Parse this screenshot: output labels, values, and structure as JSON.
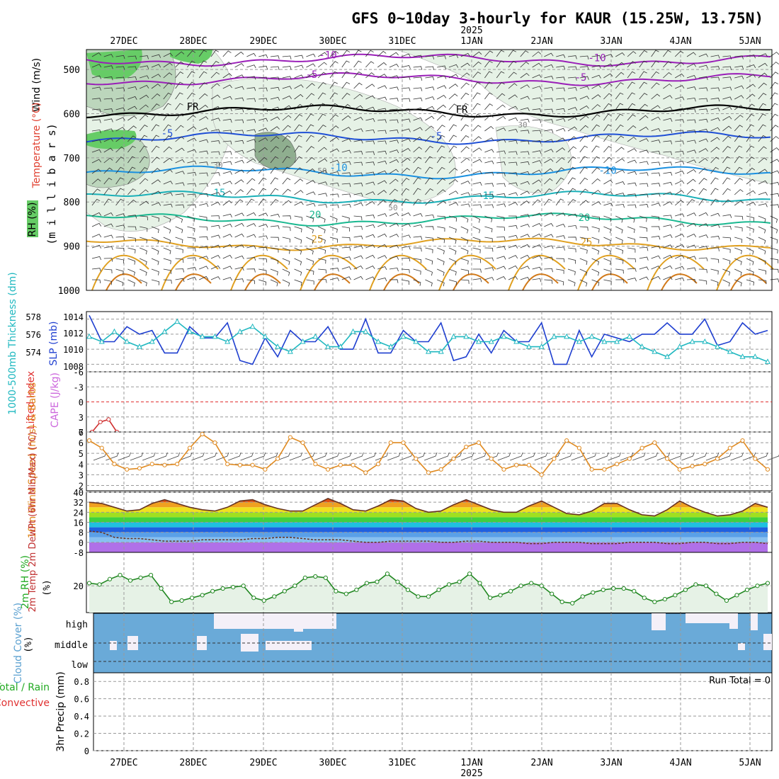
{
  "title": "GFS 0~10day 3-hourly for KAUR (15.25W, 13.75N)",
  "year_label": "2025",
  "date_labels": [
    "27DEC",
    "28DEC",
    "29DEC",
    "30DEC",
    "31DEC",
    "1JAN",
    "2JAN",
    "3JAN",
    "4JAN",
    "5JAN"
  ],
  "run_total": "Run Total = 0",
  "colors": {
    "purple": "#9a1fb8",
    "blue": "#1f4fd6",
    "lightblue": "#1a90e0",
    "teal": "#1ab0b8",
    "green": "#1ab890",
    "orange": "#e0a020",
    "darkorange": "#d27a1a",
    "black": "#000000",
    "rh_light": "#e6f2e6",
    "rh_mid": "#bcd6bc",
    "rh_dark": "#8fae8f",
    "rh_green": "#66cc66",
    "slp": "#1f3fd0",
    "thick": "#20b8c0",
    "wind10": "#e08a20",
    "cloud": "#6aaad8",
    "cloud_clear": "#f4f0f8"
  },
  "chart_data": [
    {
      "type": "line",
      "id": "upper",
      "title": "Wind (m/s) / Temperature (°C) / RH (%)",
      "ylabel": "(m i l l i b a r s)",
      "y_ticks": [
        500,
        600,
        700,
        800,
        900,
        1000
      ],
      "ylim": [
        455,
        1000
      ],
      "label_wind": "Wind (m/s)",
      "label_temp": "Temperature (°C)",
      "label_rh": "RH (%)",
      "isotherms": [
        {
          "label": "-10",
          "level": 478
        },
        {
          "label": "-5",
          "level": 522
        },
        {
          "label": "FR",
          "level": 595
        },
        {
          "label": "-5",
          "level": 655
        },
        {
          "label": "-10",
          "level": 733
        },
        {
          "label": "15",
          "level": 790
        },
        {
          "label": "20",
          "level": 840
        },
        {
          "label": "25",
          "level": 895
        }
      ],
      "rh_contours": [
        "30",
        "30",
        "50",
        "50"
      ]
    },
    {
      "type": "line",
      "id": "slp",
      "ylabel_left": "1000-500mb Thickness (dm)",
      "ylabel_right": "SLP (mb)",
      "left_ticks": [
        "578",
        "576",
        "574"
      ],
      "right_ticks": [
        "1014",
        "1012",
        "1010",
        "1008"
      ],
      "ylim": [
        1007,
        1015
      ],
      "series": [
        {
          "name": "SLP (mb)",
          "values": [
            1014.5,
            1011,
            1011,
            1013,
            1012,
            1012.5,
            1009.5,
            1009.5,
            1013,
            1011.5,
            1011.5,
            1013.5,
            1008.5,
            1008,
            1011.5,
            1009,
            1012.5,
            1011,
            1011,
            1013,
            1010,
            1010,
            1014,
            1009.5,
            1009.5,
            1012.5,
            1011,
            1011,
            1013.5,
            1008.5,
            1009,
            1012,
            1009.5,
            1012.5,
            1011,
            1011,
            1013.5,
            1008,
            1008,
            1012.5,
            1009,
            1012,
            1011.5,
            1011,
            1012,
            1012,
            1013.5,
            1012,
            1012,
            1014,
            1010.5,
            1011,
            1013.5,
            1012,
            1012.5
          ]
        },
        {
          "name": "Thickness (dm)",
          "values": [
            576,
            575.5,
            576.5,
            575.5,
            575,
            575.5,
            576.5,
            577.5,
            576.5,
            576,
            576,
            575.5,
            576.5,
            577,
            576,
            575,
            574.5,
            575.5,
            576,
            575,
            575,
            576.5,
            576.5,
            575.5,
            575,
            576,
            575.5,
            574.5,
            574.5,
            576,
            576,
            575.5,
            575.5,
            576,
            575.5,
            575,
            575,
            576,
            576,
            575.5,
            576,
            575.5,
            575.5,
            576,
            575,
            574.5,
            574,
            575,
            575.5,
            575.5,
            575,
            574.5,
            574,
            574,
            573.5
          ]
        }
      ]
    },
    {
      "type": "line",
      "id": "cape",
      "ylabel_left": "Lifted Index",
      "ylabel_right": "CAPE (J/kg)",
      "y_ticks": [
        "-6",
        "-3",
        "0",
        "3",
        "6"
      ],
      "ylim": [
        -6,
        6
      ],
      "series": [
        {
          "name": "Lifted Index",
          "values": [
            6,
            4,
            3.5,
            6
          ]
        }
      ]
    },
    {
      "type": "line",
      "id": "wind10",
      "ylabel": "10m Wind Speed (m/s) & Barbs",
      "y_ticks": [
        "7",
        "6",
        "5",
        "4",
        "3",
        "2"
      ],
      "ylim": [
        1.5,
        7
      ],
      "series": [
        {
          "name": "10m Wind Speed (m/s)",
          "values": [
            6.2,
            5.5,
            4,
            3.5,
            3.6,
            4,
            3.9,
            4,
            5.5,
            6.8,
            6,
            4,
            3.9,
            3.9,
            3.5,
            4.5,
            6.5,
            6,
            4,
            3.5,
            3.9,
            3.9,
            3.2,
            4,
            6,
            6,
            4.5,
            3.2,
            3.5,
            4.5,
            5.6,
            6,
            4.5,
            3.5,
            3.9,
            3.9,
            3,
            4.5,
            6.2,
            5.5,
            3.5,
            3.5,
            4,
            4.5,
            5.5,
            6,
            4.5,
            3.5,
            3.8,
            4,
            4.5,
            5.5,
            6.2,
            4.5,
            3.5
          ]
        }
      ]
    },
    {
      "type": "area",
      "id": "temp2m",
      "ylabel": "2m Temp 2m DewPt (6hr Min/Max) (°C)",
      "y_ticks": [
        "40",
        "32",
        "24",
        "16",
        "8",
        "0",
        "-8"
      ],
      "ylim": [
        -8,
        40
      ],
      "series": [
        {
          "name": "2m Temp (°C)",
          "values": [
            32,
            31,
            28,
            25,
            26,
            31,
            34,
            31,
            28,
            26,
            25,
            28,
            33,
            34,
            30,
            27,
            25,
            25,
            30,
            35,
            31,
            26,
            25,
            29,
            34,
            33,
            27,
            24,
            25,
            30,
            34,
            30,
            26,
            24,
            24,
            29,
            33,
            28,
            23,
            22,
            25,
            31,
            31,
            26,
            22,
            21,
            26,
            33,
            28,
            24,
            21,
            22,
            25,
            31,
            28
          ]
        },
        {
          "name": "2m DewPt (°C)",
          "values": [
            9,
            8,
            4,
            3,
            3,
            2,
            1,
            1,
            1,
            2,
            2,
            2,
            2,
            3,
            3,
            4,
            4,
            3,
            2,
            2,
            2,
            1,
            0,
            0,
            1,
            1,
            1,
            1,
            0,
            0,
            1,
            1,
            0,
            0,
            0,
            -1,
            -1,
            0,
            0,
            0,
            -1,
            -1,
            -1,
            0,
            0,
            0,
            -1,
            -1,
            0,
            0,
            -1,
            -1,
            0,
            0,
            -1
          ]
        }
      ]
    },
    {
      "type": "area",
      "id": "rh2m",
      "ylabel": "2m RH (%)",
      "y_ticks": [
        "20"
      ],
      "ylim": [
        0,
        45
      ],
      "series": [
        {
          "name": "2m RH",
          "values": [
            22,
            21,
            25,
            28,
            24,
            26,
            28,
            18,
            8,
            9,
            11,
            13,
            16,
            18,
            19,
            20,
            11,
            9,
            12,
            16,
            20,
            26,
            27,
            26,
            16,
            14,
            17,
            22,
            23,
            29,
            23,
            17,
            12,
            12,
            17,
            21,
            23,
            29,
            22,
            11,
            13,
            16,
            20,
            22,
            20,
            14,
            8,
            7,
            12,
            15,
            17,
            18,
            18,
            16,
            11,
            8,
            10,
            13,
            17,
            21,
            20,
            14,
            9,
            13,
            17,
            20,
            22
          ]
        }
      ]
    },
    {
      "type": "bar",
      "id": "cloud",
      "ylabel": "Cloud Cover (%)",
      "levels": [
        "high",
        "middle",
        "low"
      ]
    },
    {
      "type": "line",
      "id": "precip",
      "ylabel": "3hr Precip (mm)",
      "label_left": "Total / Rain",
      "label_left2": "Convective",
      "y_ticks": [
        "0.8",
        "0.6",
        "0.4",
        "0.2",
        "0"
      ],
      "ylim": [
        0,
        0.9
      ]
    }
  ]
}
